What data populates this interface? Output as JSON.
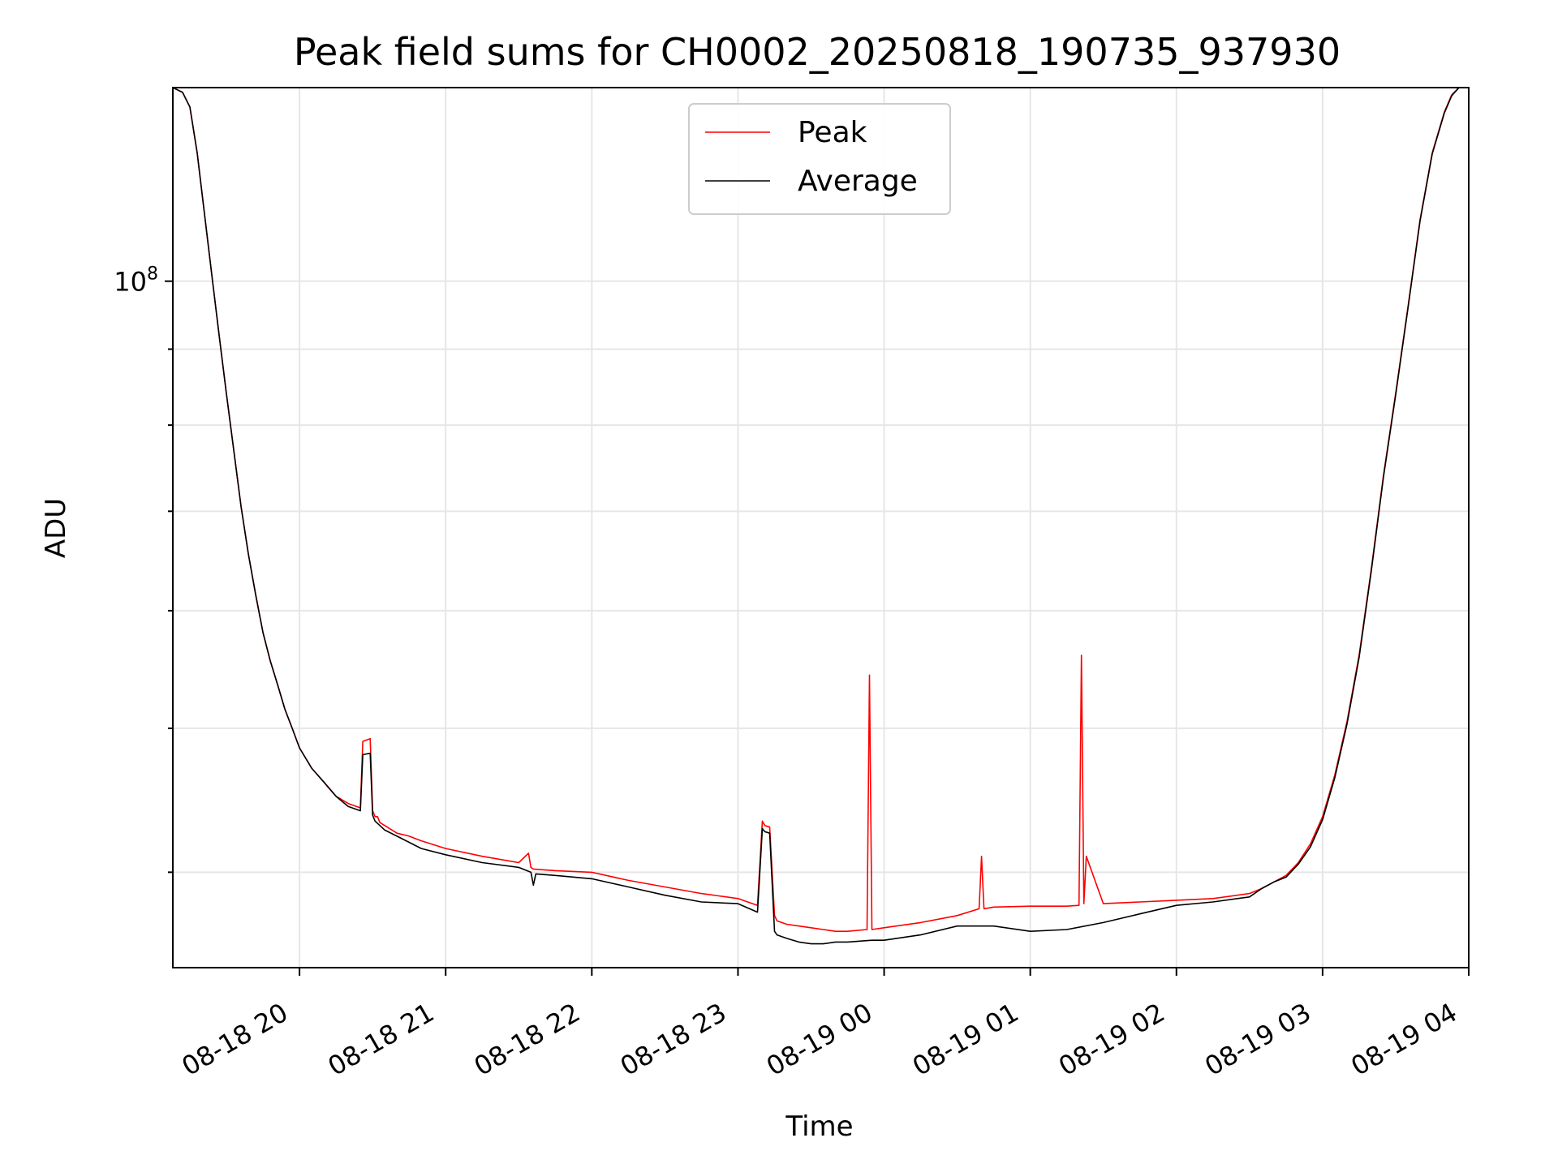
{
  "chart_data": {
    "type": "line",
    "title": "Peak field sums for CH0002_20250818_190735_937930",
    "xlabel": "Time",
    "ylabel": "ADU",
    "y_scale": "log",
    "x_ticks": [
      "08-18 20",
      "08-18 21",
      "08-18 22",
      "08-18 23",
      "08-19 00",
      "08-19 01",
      "08-19 02",
      "08-19 03",
      "08-19 04"
    ],
    "x_tick_times": [
      "2025-08-18 20:00",
      "2025-08-18 21:00",
      "2025-08-18 22:00",
      "2025-08-18 23:00",
      "2025-08-19 00:00",
      "2025-08-19 01:00",
      "2025-08-19 02:00",
      "2025-08-19 03:00",
      "2025-08-19 04:00"
    ],
    "xlim": [
      "2025-08-18 19:08",
      "2025-08-19 04:00"
    ],
    "y_ticks": [
      {
        "label": "10",
        "exponent": "8",
        "value": 100000000
      }
    ],
    "ylim": [
      34500000,
      135000000
    ],
    "grid": true,
    "legend_position": "upper center",
    "series": [
      {
        "name": "Peak",
        "color": "#ff0000",
        "x": [
          "2025-08-18 19:08",
          "2025-08-18 19:12",
          "2025-08-18 19:15",
          "2025-08-18 19:18",
          "2025-08-18 19:21",
          "2025-08-18 19:24",
          "2025-08-18 19:27",
          "2025-08-18 19:30",
          "2025-08-18 19:33",
          "2025-08-18 19:36",
          "2025-08-18 19:39",
          "2025-08-18 19:42",
          "2025-08-18 19:45",
          "2025-08-18 19:48",
          "2025-08-18 19:51",
          "2025-08-18 19:54",
          "2025-08-18 19:57",
          "2025-08-18 20:00",
          "2025-08-18 20:05",
          "2025-08-18 20:10",
          "2025-08-18 20:15",
          "2025-08-18 20:20",
          "2025-08-18 20:25",
          "2025-08-18 20:26",
          "2025-08-18 20:29",
          "2025-08-18 20:30",
          "2025-08-18 20:31",
          "2025-08-18 20:32",
          "2025-08-18 20:33",
          "2025-08-18 20:35",
          "2025-08-18 20:40",
          "2025-08-18 20:45",
          "2025-08-18 20:50",
          "2025-08-18 21:00",
          "2025-08-18 21:15",
          "2025-08-18 21:30",
          "2025-08-18 21:34",
          "2025-08-18 21:35",
          "2025-08-18 21:36",
          "2025-08-18 21:45",
          "2025-08-18 22:00",
          "2025-08-18 22:15",
          "2025-08-18 22:30",
          "2025-08-18 22:45",
          "2025-08-18 23:00",
          "2025-08-18 23:08",
          "2025-08-18 23:10",
          "2025-08-18 23:11",
          "2025-08-18 23:13",
          "2025-08-18 23:15",
          "2025-08-18 23:16",
          "2025-08-18 23:20",
          "2025-08-18 23:25",
          "2025-08-18 23:30",
          "2025-08-18 23:35",
          "2025-08-18 23:40",
          "2025-08-18 23:45",
          "2025-08-18 23:53",
          "2025-08-18 23:54",
          "2025-08-18 23:55",
          "2025-08-19 00:00",
          "2025-08-19 00:15",
          "2025-08-19 00:30",
          "2025-08-19 00:39",
          "2025-08-19 00:40",
          "2025-08-19 00:41",
          "2025-08-19 00:45",
          "2025-08-19 01:00",
          "2025-08-19 01:15",
          "2025-08-19 01:20",
          "2025-08-19 01:21",
          "2025-08-19 01:22",
          "2025-08-19 01:23",
          "2025-08-19 01:30",
          "2025-08-19 01:45",
          "2025-08-19 02:00",
          "2025-08-19 02:15",
          "2025-08-19 02:30",
          "2025-08-19 02:35",
          "2025-08-19 02:40",
          "2025-08-19 02:45",
          "2025-08-19 02:50",
          "2025-08-19 02:55",
          "2025-08-19 03:00",
          "2025-08-19 03:05",
          "2025-08-19 03:10",
          "2025-08-19 03:15",
          "2025-08-19 03:20",
          "2025-08-19 03:25",
          "2025-08-19 03:30",
          "2025-08-19 03:35",
          "2025-08-19 03:40",
          "2025-08-19 03:45",
          "2025-08-19 03:50",
          "2025-08-19 03:53",
          "2025-08-19 03:56",
          "2025-08-19 04:00"
        ],
        "y": [
          135000000,
          134000000,
          131000000,
          122000000,
          111000000,
          101000000,
          92000000,
          84000000,
          77000000,
          70500000,
          65500000,
          61500000,
          58000000,
          55500000,
          53500000,
          51500000,
          50000000,
          48500000,
          47000000,
          46000000,
          45000000,
          44500000,
          44200000,
          49000000,
          49200000,
          44000000,
          43600000,
          43600000,
          43200000,
          43000000,
          42500000,
          42300000,
          42000000,
          41500000,
          41000000,
          40600000,
          41200000,
          40300000,
          40200000,
          40100000,
          40000000,
          39500000,
          39100000,
          38700000,
          38400000,
          38000000,
          43300000,
          43000000,
          42900000,
          37400000,
          37100000,
          36900000,
          36800000,
          36700000,
          36600000,
          36500000,
          36500000,
          36600000,
          54300000,
          36600000,
          36700000,
          37000000,
          37400000,
          37800000,
          41000000,
          37800000,
          37900000,
          37950000,
          37950000,
          38000000,
          56000000,
          38100000,
          41000000,
          38100000,
          38200000,
          38300000,
          38400000,
          38700000,
          39000000,
          39400000,
          39800000,
          40600000,
          41800000,
          43600000,
          46500000,
          50500000,
          56000000,
          64000000,
          74000000,
          84000000,
          96000000,
          110000000,
          122000000,
          130000000,
          133500000,
          135000000,
          135000000
        ]
      },
      {
        "name": "Average",
        "color": "#000000",
        "x": [
          "2025-08-18 19:08",
          "2025-08-18 19:12",
          "2025-08-18 19:15",
          "2025-08-18 19:18",
          "2025-08-18 19:21",
          "2025-08-18 19:24",
          "2025-08-18 19:27",
          "2025-08-18 19:30",
          "2025-08-18 19:33",
          "2025-08-18 19:36",
          "2025-08-18 19:39",
          "2025-08-18 19:42",
          "2025-08-18 19:45",
          "2025-08-18 19:48",
          "2025-08-18 19:51",
          "2025-08-18 19:54",
          "2025-08-18 19:57",
          "2025-08-18 20:00",
          "2025-08-18 20:05",
          "2025-08-18 20:10",
          "2025-08-18 20:15",
          "2025-08-18 20:20",
          "2025-08-18 20:25",
          "2025-08-18 20:26",
          "2025-08-18 20:29",
          "2025-08-18 20:30",
          "2025-08-18 20:31",
          "2025-08-18 20:35",
          "2025-08-18 20:40",
          "2025-08-18 20:45",
          "2025-08-18 20:50",
          "2025-08-18 21:00",
          "2025-08-18 21:15",
          "2025-08-18 21:30",
          "2025-08-18 21:35",
          "2025-08-18 21:36",
          "2025-08-18 21:37",
          "2025-08-18 21:45",
          "2025-08-18 22:00",
          "2025-08-18 22:15",
          "2025-08-18 22:30",
          "2025-08-18 22:45",
          "2025-08-18 23:00",
          "2025-08-18 23:08",
          "2025-08-18 23:10",
          "2025-08-18 23:11",
          "2025-08-18 23:13",
          "2025-08-18 23:15",
          "2025-08-18 23:16",
          "2025-08-18 23:20",
          "2025-08-18 23:25",
          "2025-08-18 23:30",
          "2025-08-18 23:35",
          "2025-08-18 23:40",
          "2025-08-18 23:45",
          "2025-08-18 23:55",
          "2025-08-19 00:00",
          "2025-08-19 00:15",
          "2025-08-19 00:30",
          "2025-08-19 00:45",
          "2025-08-19 01:00",
          "2025-08-19 01:15",
          "2025-08-19 01:30",
          "2025-08-19 01:45",
          "2025-08-19 02:00",
          "2025-08-19 02:15",
          "2025-08-19 02:30",
          "2025-08-19 02:35",
          "2025-08-19 02:40",
          "2025-08-19 02:45",
          "2025-08-19 02:50",
          "2025-08-19 02:55",
          "2025-08-19 03:00",
          "2025-08-19 03:05",
          "2025-08-19 03:10",
          "2025-08-19 03:15",
          "2025-08-19 03:20",
          "2025-08-19 03:25",
          "2025-08-19 03:30",
          "2025-08-19 03:35",
          "2025-08-19 03:40",
          "2025-08-19 03:45",
          "2025-08-19 03:50",
          "2025-08-19 03:53",
          "2025-08-19 03:56",
          "2025-08-19 04:00"
        ],
        "y": [
          135000000,
          134000000,
          131000000,
          122000000,
          111000000,
          101000000,
          92000000,
          84000000,
          77000000,
          70500000,
          65500000,
          61500000,
          58000000,
          55500000,
          53500000,
          51500000,
          50000000,
          48500000,
          47000000,
          46000000,
          45000000,
          44300000,
          44000000,
          48000000,
          48100000,
          43700000,
          43300000,
          42700000,
          42300000,
          41900000,
          41500000,
          41100000,
          40600000,
          40300000,
          40000000,
          39200000,
          39900000,
          39800000,
          39600000,
          39100000,
          38600000,
          38200000,
          38100000,
          37600000,
          42800000,
          42600000,
          42500000,
          36500000,
          36300000,
          36100000,
          35900000,
          35800000,
          35800000,
          35900000,
          35900000,
          36000000,
          36000000,
          36300000,
          36800000,
          36800000,
          36500000,
          36600000,
          37000000,
          37500000,
          38000000,
          38200000,
          38500000,
          39000000,
          39400000,
          39700000,
          40500000,
          41600000,
          43400000,
          46300000,
          50300000,
          55800000,
          63800000,
          73800000,
          83800000,
          95800000,
          109800000,
          121800000,
          129800000,
          133300000,
          135000000,
          135000000
        ]
      }
    ]
  },
  "legend": {
    "items": [
      {
        "label": "Peak",
        "color": "#ff0000"
      },
      {
        "label": "Average",
        "color": "#000000"
      }
    ]
  }
}
